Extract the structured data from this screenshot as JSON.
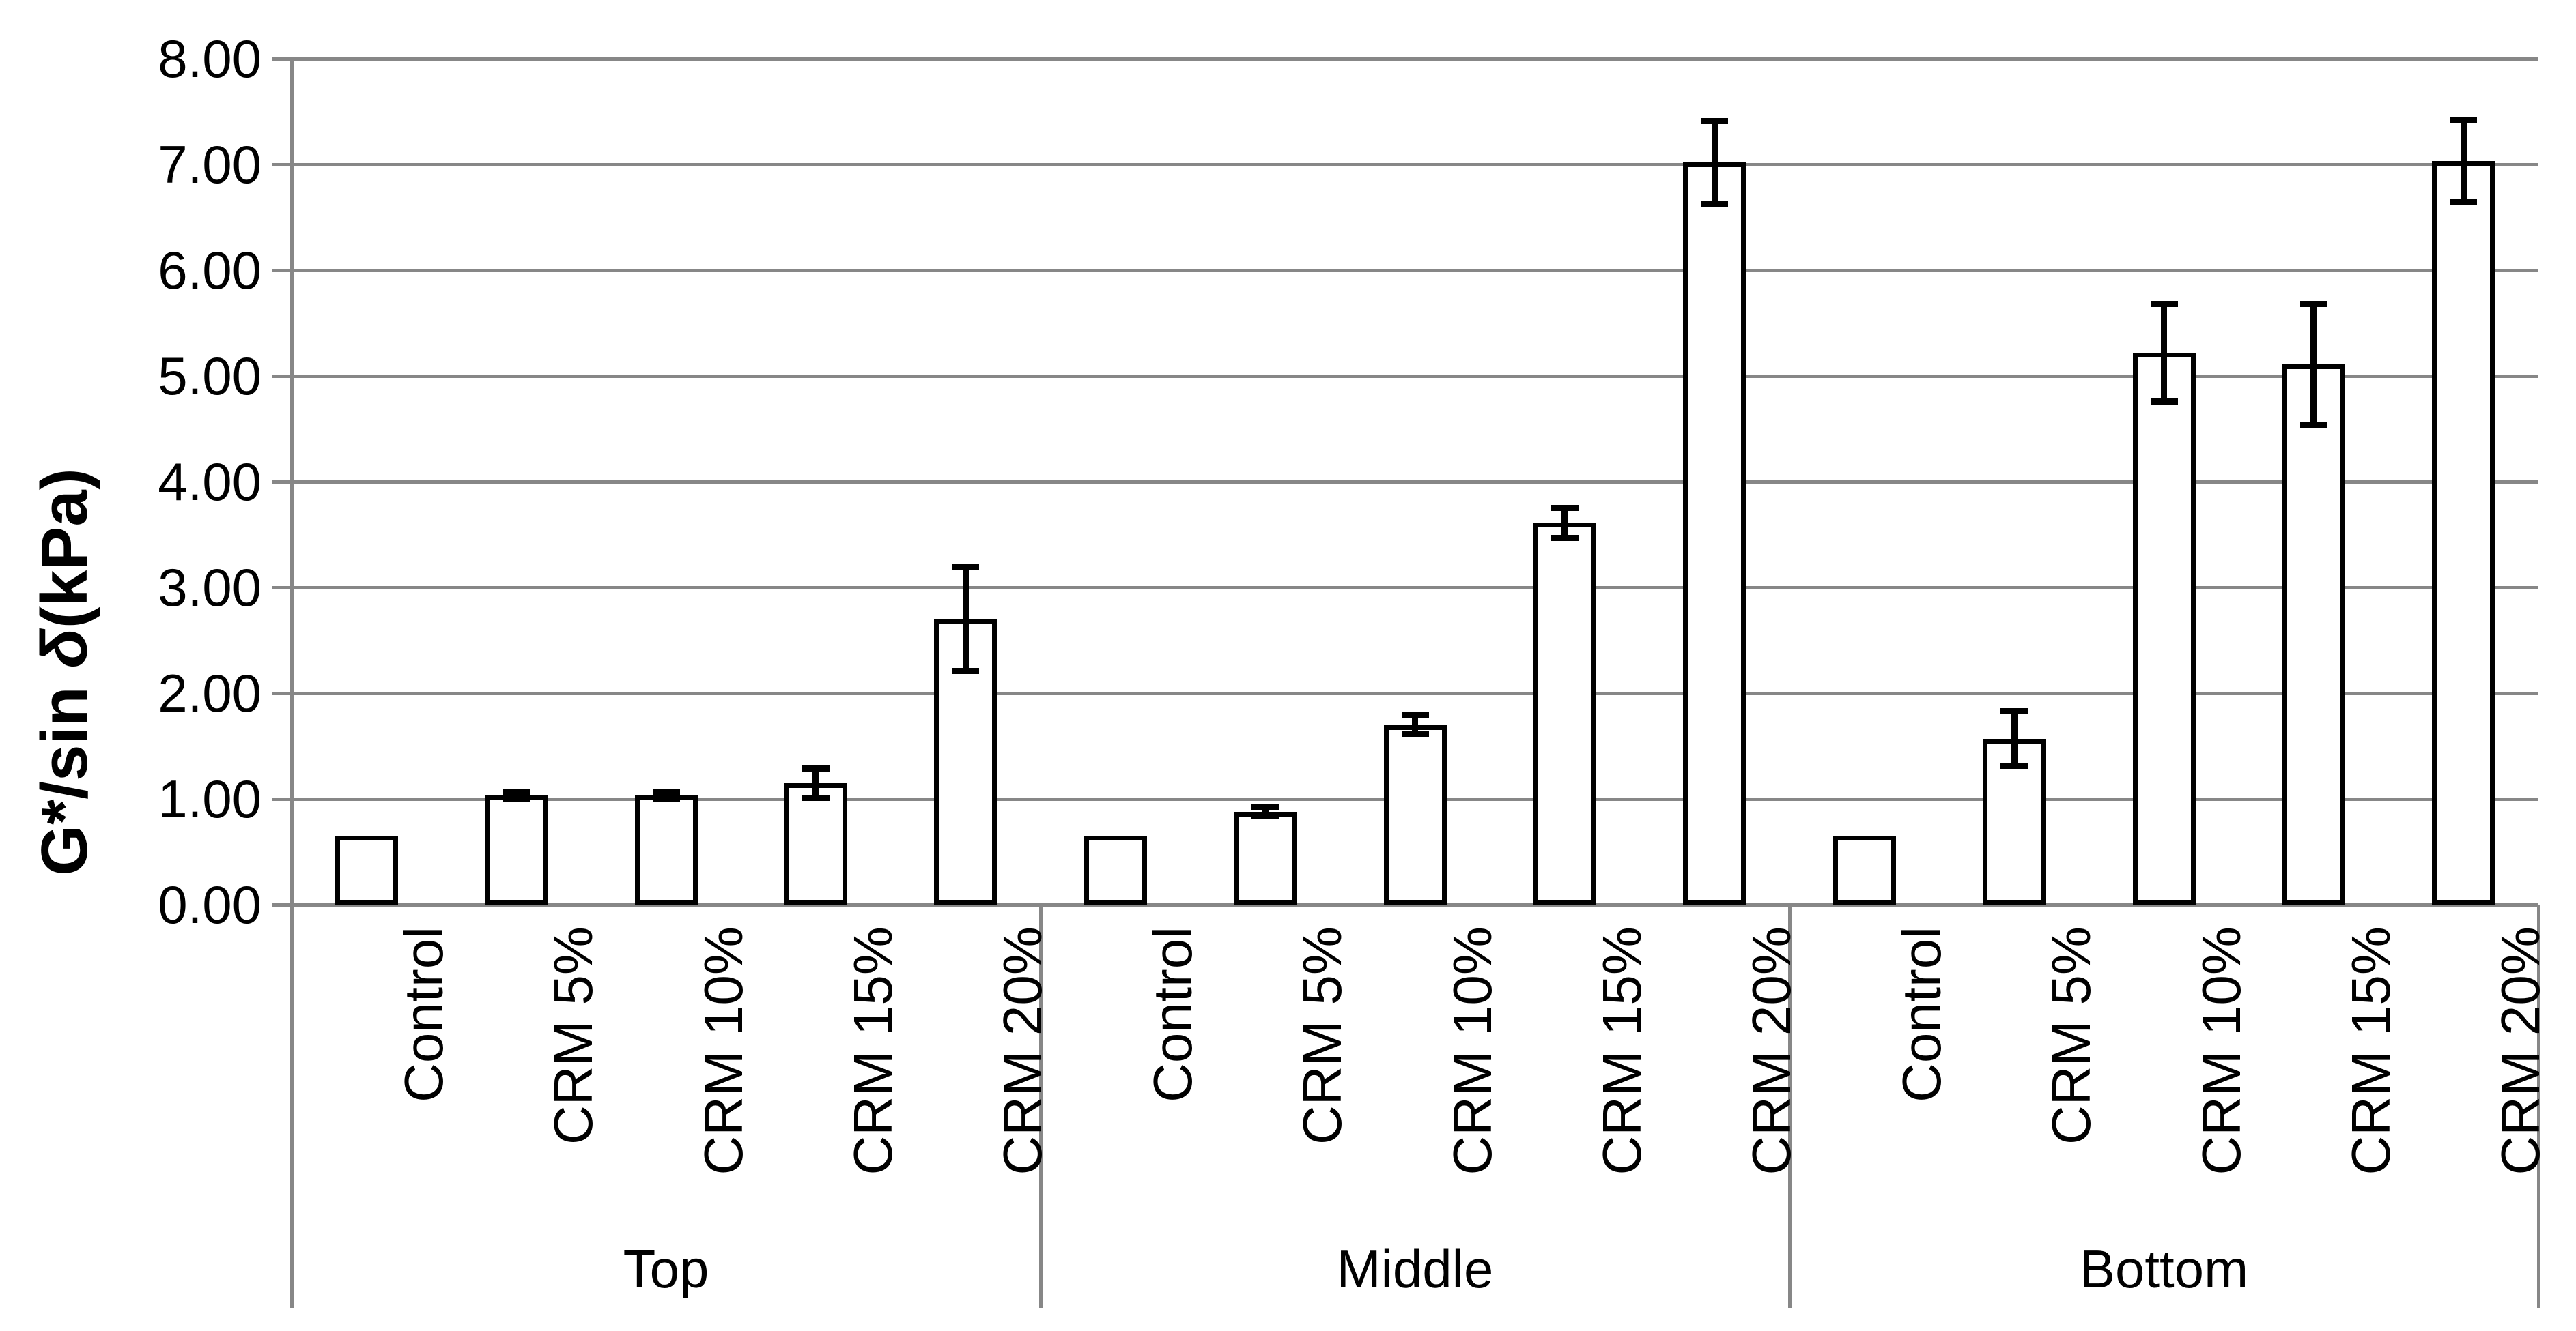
{
  "chart_data": {
    "type": "bar",
    "title": "",
    "ylabel": "G*/sin δ(kPa)",
    "ylabel_prefix": "G*/sin ",
    "ylabel_delta": "δ",
    "ylabel_suffix": "(kPa)",
    "xlabel": "",
    "ylim": [
      0,
      8
    ],
    "ytick_step": 1,
    "ytick_labels": [
      "0.00",
      "1.00",
      "2.00",
      "3.00",
      "4.00",
      "5.00",
      "6.00",
      "7.00",
      "8.00"
    ],
    "grid": true,
    "legend": "none",
    "groups": [
      "Top",
      "Middle",
      "Bottom"
    ],
    "categories": [
      "Control",
      "CRM 5%",
      "CRM 10%",
      "CRM 15%",
      "CRM 20%"
    ],
    "series": [
      {
        "group": "Top",
        "values": [
          0.65,
          1.03,
          1.03,
          1.15,
          2.7
        ],
        "errors": [
          0,
          0.03,
          0.03,
          0.14,
          0.49
        ]
      },
      {
        "group": "Middle",
        "values": [
          0.65,
          0.88,
          1.7,
          3.61,
          7.02
        ],
        "errors": [
          0,
          0.04,
          0.09,
          0.14,
          0.39
        ]
      },
      {
        "group": "Bottom",
        "values": [
          0.65,
          1.57,
          5.22,
          5.11,
          7.03
        ],
        "errors": [
          0,
          0.26,
          0.46,
          0.57,
          0.39
        ]
      }
    ],
    "bar_fill": "#ffffff",
    "bar_border": "#000000",
    "error_color": "#000000",
    "grid_color": "#878787",
    "text_color": "#000000"
  }
}
